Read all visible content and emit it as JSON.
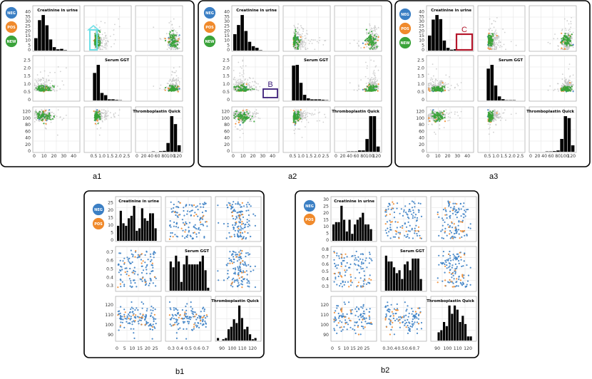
{
  "figure": {
    "panel_labels": [
      "a1",
      "a2",
      "a3",
      "b1",
      "b2"
    ],
    "variables": [
      "Creatinine in urine",
      "Serum GGT",
      "Thromboplastin Quick"
    ],
    "legend": [
      {
        "label": "NEG",
        "color": "#3b7fc4"
      },
      {
        "label": "POS",
        "color": "#f08a2c"
      },
      {
        "label": "NEW",
        "color": "#3aa33a"
      }
    ],
    "annotations": [
      {
        "panel": "a2",
        "label": "B",
        "color": "#3c1f7a"
      },
      {
        "panel": "a3",
        "label": "C",
        "color": "#b5162b"
      }
    ],
    "highlight_color": "#6fe0e8",
    "colors": {
      "neg": "#3b7fc4",
      "pos": "#f08a2c",
      "new": "#3aa33a",
      "gray": "#c3c3c3",
      "bar": "#000000"
    }
  },
  "chart_data": [
    {
      "type": "scatter",
      "panel": "a1",
      "title": "",
      "legend": [
        "NEG",
        "POS",
        "NEW"
      ],
      "variables": [
        "Creatinine in urine",
        "Serum GGT",
        "Thromboplastin Quick"
      ],
      "axes": {
        "creatinine": {
          "range": [
            0,
            45
          ],
          "ticks": [
            "0",
            "5",
            "10",
            "15",
            "20",
            "25",
            "30",
            "35",
            "40"
          ],
          "bottom_ticks": [
            "0",
            "10",
            "20",
            "30",
            "40"
          ]
        },
        "ggt": {
          "range": [
            0,
            2.7
          ],
          "ticks": [
            "0",
            "0.5",
            "1.0",
            "1.5",
            "2.0",
            "2.5"
          ],
          "bottom_ticks": [
            "0.5",
            "1.0",
            "1.5",
            "2.0",
            "2.5"
          ]
        },
        "quick": {
          "range": [
            0,
            130
          ],
          "ticks": [
            "0",
            "20",
            "40",
            "60",
            "80",
            "100",
            "120"
          ],
          "bottom_ticks": [
            "0",
            "20",
            "40",
            "60",
            "80",
            "100",
            "120"
          ]
        }
      }
    },
    {
      "type": "scatter",
      "panel": "a2",
      "title": "",
      "legend": [
        "NEG",
        "POS",
        "NEW"
      ],
      "variables": [
        "Creatinine in urine",
        "Serum GGT",
        "Thromboplastin Quick"
      ],
      "axes": {
        "creatinine": {
          "range": [
            0,
            45
          ],
          "ticks": [
            "0",
            "5",
            "10",
            "15",
            "20",
            "25",
            "30",
            "35",
            "40"
          ],
          "bottom_ticks": [
            "0",
            "10",
            "20",
            "30",
            "40"
          ]
        },
        "ggt": {
          "range": [
            0,
            2.7
          ],
          "ticks": [
            "0",
            "0.5",
            "1.0",
            "1.5",
            "2.0",
            "2.5"
          ],
          "bottom_ticks": [
            "0.5",
            "1.0",
            "1.5",
            "2.0",
            "2.5"
          ]
        },
        "quick": {
          "range": [
            0,
            130
          ],
          "ticks": [
            "0",
            "20",
            "40",
            "60",
            "80",
            "100",
            "120"
          ],
          "bottom_ticks": [
            "0",
            "20",
            "40",
            "60",
            "80",
            "100",
            "120"
          ]
        }
      }
    },
    {
      "type": "scatter",
      "panel": "a3",
      "title": "",
      "legend": [
        "NEG",
        "POS",
        "NEW"
      ],
      "variables": [
        "Creatinine in urine",
        "Serum GGT",
        "Thromboplastin Quick"
      ],
      "axes": {
        "creatinine": {
          "range": [
            0,
            45
          ],
          "ticks": [
            "0",
            "5",
            "10",
            "15",
            "20",
            "25",
            "30",
            "35",
            "40"
          ],
          "bottom_ticks": [
            "0",
            "10",
            "20",
            "30",
            "40"
          ]
        },
        "ggt": {
          "range": [
            0,
            2.7
          ],
          "ticks": [
            "0",
            "0.5",
            "1.0",
            "1.5",
            "2.0",
            "2.5"
          ],
          "bottom_ticks": [
            "0.5",
            "1.0",
            "1.5",
            "2.0",
            "2.5"
          ]
        },
        "quick": {
          "range": [
            0,
            130
          ],
          "ticks": [
            "0",
            "20",
            "40",
            "60",
            "80",
            "100",
            "120"
          ],
          "bottom_ticks": [
            "0",
            "20",
            "40",
            "60",
            "80",
            "100",
            "120"
          ]
        }
      }
    },
    {
      "type": "scatter",
      "panel": "b1",
      "title": "",
      "legend": [
        "NEG",
        "POS"
      ],
      "variables": [
        "Creatinine in urine",
        "Serum GGT",
        "Thromboplastin Quick"
      ],
      "axes": {
        "creatinine": {
          "range": [
            0,
            28
          ],
          "ticks": [
            "0",
            "5",
            "10",
            "15",
            "20",
            "25"
          ],
          "bottom_ticks": [
            "0",
            "5",
            "10",
            "15",
            "20",
            "25"
          ]
        },
        "ggt": {
          "range": [
            0.25,
            0.75
          ],
          "ticks": [
            "0.3",
            "0.4",
            "0.5",
            "0.6",
            "0.7"
          ],
          "bottom_ticks": [
            "0.3",
            "0.4",
            "0.5",
            "0.6",
            "0.7"
          ]
        },
        "quick": {
          "range": [
            85,
            127
          ],
          "ticks": [
            "90",
            "100",
            "110",
            "120"
          ],
          "bottom_ticks": [
            "90",
            "100",
            "110",
            "120"
          ]
        }
      }
    },
    {
      "type": "scatter",
      "panel": "b2",
      "title": "",
      "legend": [
        "NEG",
        "POS"
      ],
      "variables": [
        "Creatinine in urine",
        "Serum GGT",
        "Thromboplastin Quick"
      ],
      "axes": {
        "creatinine": {
          "range": [
            0,
            31
          ],
          "ticks": [
            "0",
            "5",
            "10",
            "15",
            "20",
            "25",
            "30"
          ],
          "bottom_ticks": [
            "0",
            "5",
            "10",
            "15",
            "20",
            "25"
          ]
        },
        "ggt": {
          "range": [
            0.25,
            0.82
          ],
          "ticks": [
            "0.3",
            "0.4",
            "0.5",
            "0.6",
            "0.7",
            "0.8"
          ],
          "bottom_ticks": [
            "0.3",
            "0.4",
            "0.5",
            "0.6",
            "0.7"
          ]
        },
        "quick": {
          "range": [
            85,
            127
          ],
          "ticks": [
            "90",
            "100",
            "110",
            "120"
          ],
          "bottom_ticks": [
            "90",
            "100",
            "110",
            "120"
          ]
        }
      }
    }
  ]
}
